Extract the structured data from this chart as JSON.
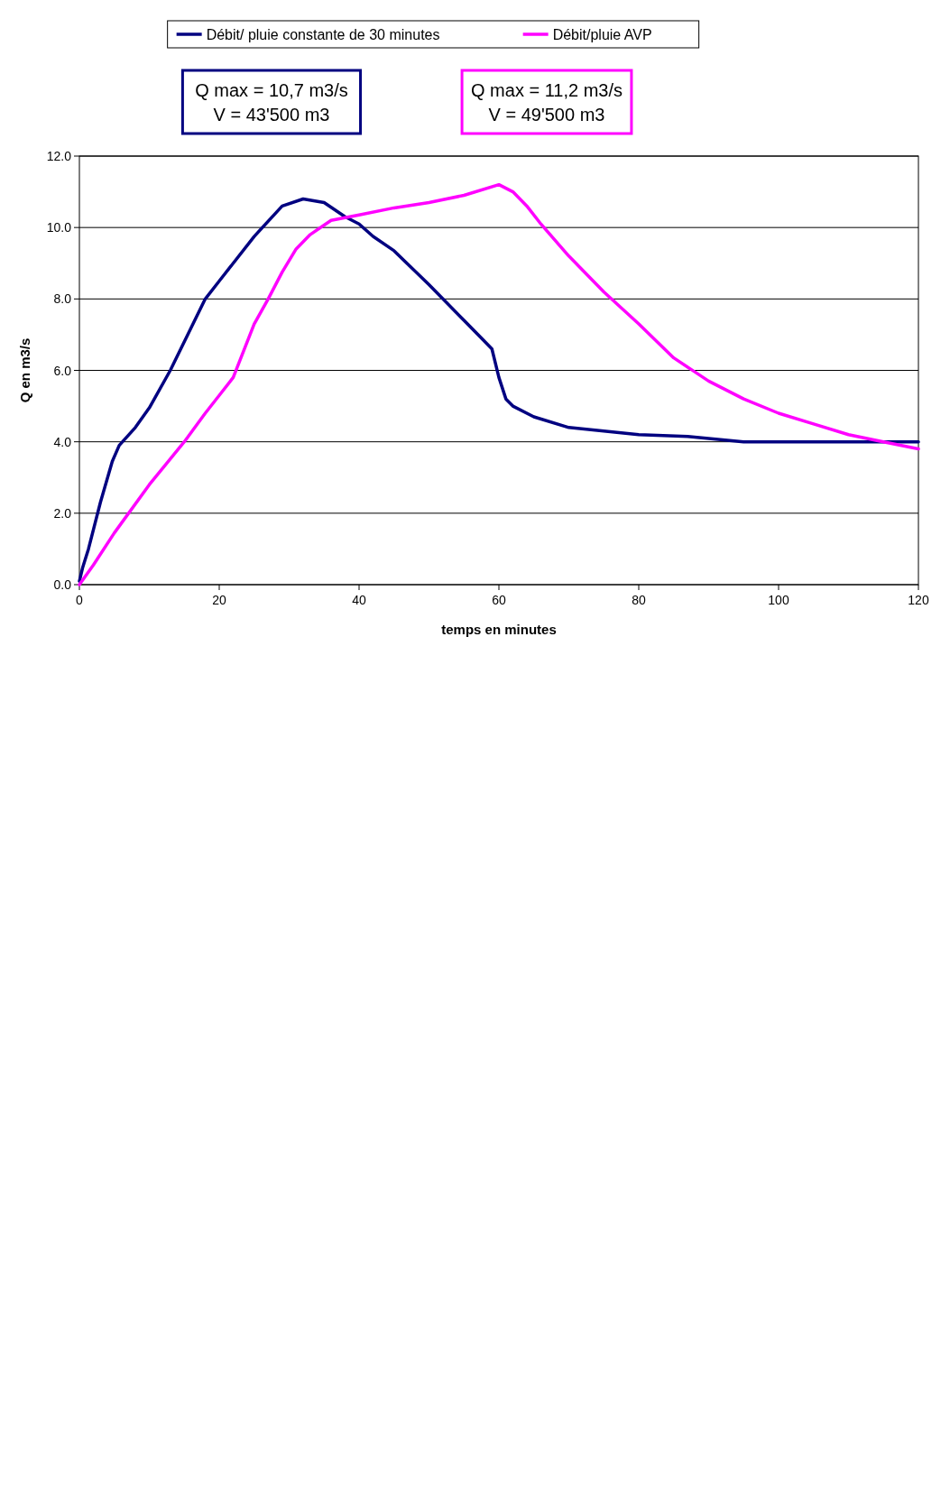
{
  "chart_data": {
    "type": "line",
    "xlabel": "temps en minutes",
    "ylabel": "Q en m3/s",
    "xlim": [
      0,
      120
    ],
    "xticks": [
      0,
      20,
      40,
      60,
      80,
      100,
      120
    ],
    "ylim": [
      0,
      12
    ],
    "yticks": [
      {
        "value": 0,
        "label": "0.0"
      },
      {
        "value": 2,
        "label": "2.0"
      },
      {
        "value": 4,
        "label": "4.0"
      },
      {
        "value": 6,
        "label": "6.0"
      },
      {
        "value": 8,
        "label": "8.0"
      },
      {
        "value": 10,
        "label": "10.0"
      },
      {
        "value": 12,
        "label": "12.0"
      }
    ],
    "grid": "y",
    "legend": "top",
    "marker": "none",
    "line_style": "solid",
    "series": [
      {
        "name": "Débit/ pluie constante de 30 minutes",
        "color": "#000080",
        "x": [
          0,
          0.5,
          1.3,
          3,
          4.7,
          5.7,
          8,
          10,
          13,
          18,
          20,
          25,
          29,
          32,
          35,
          38,
          40,
          42,
          45,
          50,
          55,
          58,
          59,
          60,
          61,
          62,
          65,
          70,
          80,
          87,
          95,
          100,
          120
        ],
        "values": [
          0.1,
          0.5,
          1.0,
          2.3,
          3.45,
          3.9,
          4.4,
          4.95,
          6.0,
          8.0,
          8.5,
          9.75,
          10.6,
          10.8,
          10.7,
          10.3,
          10.1,
          9.75,
          9.35,
          8.4,
          7.4,
          6.8,
          6.6,
          5.8,
          5.2,
          5.0,
          4.7,
          4.4,
          4.2,
          4.15,
          4.0,
          4.0,
          4.0
        ]
      },
      {
        "name": "Débit/pluie AVP",
        "color": "#ff00ff",
        "x": [
          0,
          2,
          5,
          10,
          15,
          18,
          20,
          22,
          25,
          27,
          29,
          31,
          33,
          36,
          40,
          45,
          50,
          55,
          60,
          62,
          64,
          66,
          70,
          75,
          80,
          85,
          90,
          95,
          100,
          105,
          110,
          115,
          120
        ],
        "values": [
          0,
          0.55,
          1.45,
          2.8,
          4.0,
          4.8,
          5.3,
          5.8,
          7.3,
          8.0,
          8.75,
          9.4,
          9.8,
          10.2,
          10.35,
          10.55,
          10.7,
          10.9,
          11.2,
          11.0,
          10.6,
          10.1,
          9.2,
          8.2,
          7.3,
          6.35,
          5.7,
          5.2,
          4.8,
          4.5,
          4.2,
          4.0,
          3.8
        ]
      }
    ],
    "annotations": [
      "Q max = 10,7 m3/s\nV = 43'500 m3",
      "Q max = 11,2 m3/s\nV = 49'500 m3"
    ]
  }
}
